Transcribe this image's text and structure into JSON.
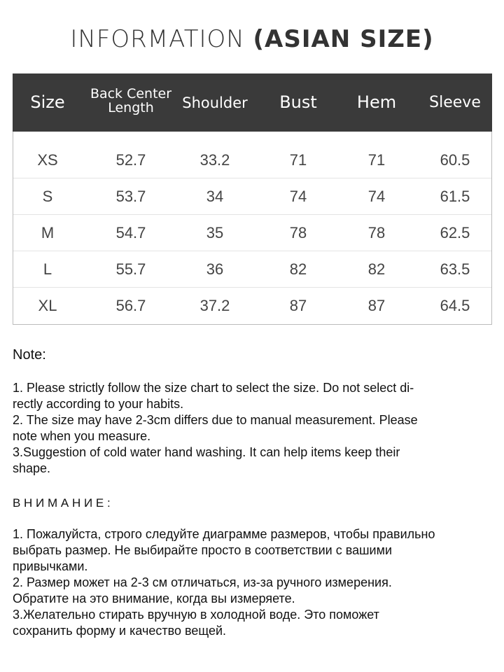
{
  "title": {
    "light": "INFORMATION ",
    "bold": "(ASIAN SIZE)"
  },
  "table": {
    "headers": [
      "Size",
      "Back Center Length",
      "Shoulder",
      "Bust",
      "Hem",
      "Sleeve"
    ],
    "header_lines": {
      "back_center_1": "Back Center",
      "back_center_2": "Length"
    },
    "rows": [
      [
        "XS",
        "52.7",
        "33.2",
        "71",
        "71",
        "60.5"
      ],
      [
        "S",
        "53.7",
        "34",
        "74",
        "74",
        "61.5"
      ],
      [
        "M",
        "54.7",
        "35",
        "78",
        "78",
        "62.5"
      ],
      [
        "L",
        "55.7",
        "36",
        "82",
        "82",
        "63.5"
      ],
      [
        "XL",
        "56.7",
        "37.2",
        "87",
        "87",
        "64.5"
      ]
    ]
  },
  "note": {
    "heading": "Note:",
    "lines": [
      "1. Please strictly follow the size chart  to select the size. Do not select di-",
      "rectly according to your habits.",
      "2. The size may have 2-3cm differs due to manual measurement. Please",
      "note when you measure.",
      "3.Suggestion of cold water hand washing. It can help items keep their",
      "shape."
    ]
  },
  "note_ru": {
    "heading": "В Н И М А Н И Е :",
    "lines": [
      "1. Пожалуйста, строго следуйте диаграмме размеров, чтобы правильно",
      "выбрать размер. Не выбирайте просто в соответствии с вашими",
      "привычками.",
      "2. Размер может на 2-3 см отличаться, из-за ручного измерения.",
      "Обратите на это внимание, когда вы измеряете.",
      "3.Желательно стирать вручную в холодной воде. Это поможет",
      "сохранить форму и качество вещей."
    ]
  },
  "colors": {
    "header_bg": "#3a3a3a",
    "header_text": "#ffffff"
  }
}
